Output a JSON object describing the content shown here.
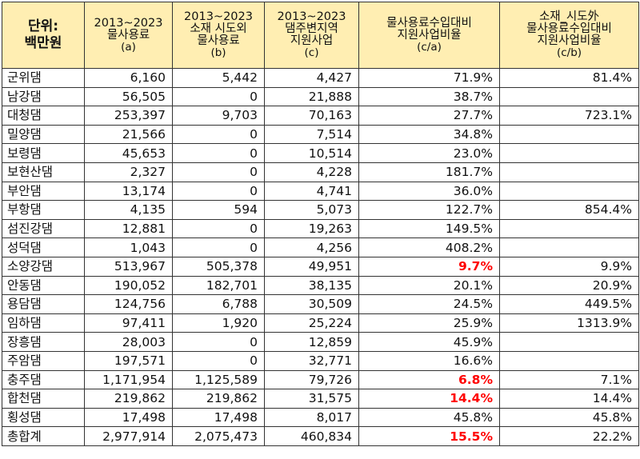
{
  "table": {
    "headers": [
      {
        "lines": [
          "단위:",
          "백만원"
        ],
        "unit": true
      },
      {
        "lines": [
          "2013~2023",
          "물사용료",
          "(a)"
        ]
      },
      {
        "lines": [
          "2013~2023",
          "소재  시도외",
          "물사용료",
          "(b)"
        ]
      },
      {
        "lines": [
          "2013~2023",
          "댐주변지역",
          "지원사업",
          "(c)"
        ]
      },
      {
        "lines": [
          "물사용료수입대비",
          "지원사업비율",
          "(c/a)"
        ]
      },
      {
        "lines": [
          "소재_시도外",
          "물사용료수입대비",
          "지원사업비율",
          "(c/b)"
        ]
      }
    ],
    "rows": [
      {
        "name": "군위댐",
        "a": "6,160",
        "b": "5,442",
        "c": "4,427",
        "ca": "71.9%",
        "cb": "81.4%"
      },
      {
        "name": "남강댐",
        "a": "56,505",
        "b": "0",
        "c": "21,888",
        "ca": "38.7%",
        "cb": ""
      },
      {
        "name": "대청댐",
        "a": "253,397",
        "b": "9,703",
        "c": "70,163",
        "ca": "27.7%",
        "cb": "723.1%"
      },
      {
        "name": "밀양댐",
        "a": "21,566",
        "b": "0",
        "c": "7,514",
        "ca": "34.8%",
        "cb": ""
      },
      {
        "name": "보령댐",
        "a": "45,653",
        "b": "0",
        "c": "10,514",
        "ca": "23.0%",
        "cb": ""
      },
      {
        "name": "보현산댐",
        "a": "2,327",
        "b": "0",
        "c": "4,228",
        "ca": "181.7%",
        "cb": ""
      },
      {
        "name": "부안댐",
        "a": "13,174",
        "b": "0",
        "c": "4,741",
        "ca": "36.0%",
        "cb": ""
      },
      {
        "name": "부항댐",
        "a": "4,135",
        "b": "594",
        "c": "5,073",
        "ca": "122.7%",
        "cb": "854.4%"
      },
      {
        "name": "섬진강댐",
        "a": "12,881",
        "b": "0",
        "c": "19,263",
        "ca": "149.5%",
        "cb": ""
      },
      {
        "name": "성덕댐",
        "a": "1,043",
        "b": "0",
        "c": "4,256",
        "ca": "408.2%",
        "cb": ""
      },
      {
        "name": "소양강댐",
        "a": "513,967",
        "b": "505,378",
        "c": "49,951",
        "ca": "9.7%",
        "cb": "9.9%",
        "highlight": true
      },
      {
        "name": "안동댐",
        "a": "190,052",
        "b": "182,701",
        "c": "38,135",
        "ca": "20.1%",
        "cb": "20.9%"
      },
      {
        "name": "용담댐",
        "a": "124,756",
        "b": "6,788",
        "c": "30,509",
        "ca": "24.5%",
        "cb": "449.5%"
      },
      {
        "name": "임하댐",
        "a": "97,411",
        "b": "1,920",
        "c": "25,224",
        "ca": "25.9%",
        "cb": "1313.9%"
      },
      {
        "name": "장흥댐",
        "a": "28,003",
        "b": "0",
        "c": "12,859",
        "ca": "45.9%",
        "cb": ""
      },
      {
        "name": "주암댐",
        "a": "197,571",
        "b": "0",
        "c": "32,771",
        "ca": "16.6%",
        "cb": ""
      },
      {
        "name": "충주댐",
        "a": "1,171,954",
        "b": "1,125,589",
        "c": "79,726",
        "ca": "6.8%",
        "cb": "7.1%",
        "highlight": true
      },
      {
        "name": "합천댐",
        "a": "219,862",
        "b": "219,862",
        "c": "31,575",
        "ca": "14.4%",
        "cb": "14.4%",
        "highlight": true
      },
      {
        "name": "횡성댐",
        "a": "17,498",
        "b": "17,498",
        "c": "8,017",
        "ca": "45.8%",
        "cb": "45.8%"
      },
      {
        "name": "총합계",
        "a": "2,977,914",
        "b": "2,075,473",
        "c": "460,834",
        "ca": "15.5%",
        "cb": "22.2%",
        "highlight": true
      }
    ]
  },
  "colors": {
    "header_bg": "#ffeeb2",
    "highlight_text": "#ff0000",
    "border": "#333333"
  }
}
